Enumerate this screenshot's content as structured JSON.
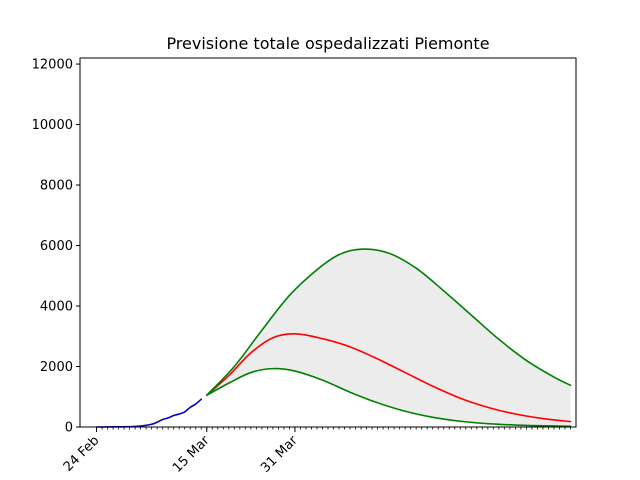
{
  "chart_data": {
    "type": "line",
    "title": "Previsione totale ospedalizzati Piemonte",
    "xlabel": "",
    "ylabel": "",
    "ylim": [
      0,
      12200
    ],
    "yticks": [
      0,
      2000,
      4000,
      6000,
      8000,
      10000,
      12000
    ],
    "xaxis": {
      "start_date": "2020-02-21",
      "end_date": "2020-05-21",
      "major_ticks": [
        {
          "date": "2020-02-24",
          "label": "24 Feb"
        },
        {
          "date": "2020-03-15",
          "label": "15 Mar"
        },
        {
          "date": "2020-03-31",
          "label": "31 Mar"
        }
      ],
      "minor_ticks_every_days": 1
    },
    "grid": false,
    "series": [
      {
        "role": "observed",
        "color": "#0000cc",
        "x": [
          "2020-02-24",
          "2020-02-27",
          "2020-03-01",
          "2020-03-03",
          "2020-03-05",
          "2020-03-06",
          "2020-03-07",
          "2020-03-08",
          "2020-03-09",
          "2020-03-10",
          "2020-03-11",
          "2020-03-12",
          "2020-03-13",
          "2020-03-14"
        ],
        "values": [
          0,
          5,
          10,
          30,
          90,
          160,
          250,
          300,
          380,
          430,
          500,
          650,
          760,
          920
        ]
      },
      {
        "role": "forecast-central",
        "color": "#ff0000",
        "x": [
          "2020-03-15",
          "2020-03-19",
          "2020-03-23",
          "2020-03-27",
          "2020-03-31",
          "2020-04-05",
          "2020-04-10",
          "2020-04-15",
          "2020-04-20",
          "2020-04-25",
          "2020-04-30",
          "2020-05-05",
          "2020-05-10",
          "2020-05-15",
          "2020-05-20"
        ],
        "values": [
          1050,
          1700,
          2450,
          2950,
          3080,
          2920,
          2650,
          2250,
          1800,
          1350,
          950,
          650,
          430,
          280,
          180
        ]
      },
      {
        "role": "forecast-upper",
        "color": "#008000",
        "x": [
          "2020-03-15",
          "2020-03-20",
          "2020-03-25",
          "2020-03-30",
          "2020-04-04",
          "2020-04-08",
          "2020-04-12",
          "2020-04-17",
          "2020-04-22",
          "2020-04-27",
          "2020-05-02",
          "2020-05-07",
          "2020-05-12",
          "2020-05-17",
          "2020-05-20"
        ],
        "values": [
          1050,
          2000,
          3200,
          4350,
          5200,
          5700,
          5880,
          5750,
          5250,
          4500,
          3700,
          2900,
          2200,
          1650,
          1380
        ]
      },
      {
        "role": "forecast-lower",
        "color": "#008000",
        "x": [
          "2020-03-15",
          "2020-03-19",
          "2020-03-23",
          "2020-03-27",
          "2020-03-31",
          "2020-04-05",
          "2020-04-10",
          "2020-04-15",
          "2020-04-20",
          "2020-04-25",
          "2020-04-30",
          "2020-05-05",
          "2020-05-10",
          "2020-05-15",
          "2020-05-20"
        ],
        "values": [
          1050,
          1450,
          1800,
          1930,
          1850,
          1550,
          1150,
          800,
          520,
          320,
          190,
          110,
          65,
          40,
          25
        ]
      }
    ],
    "band": {
      "between": [
        "forecast-lower",
        "forecast-upper"
      ],
      "color": "#ececec"
    }
  }
}
